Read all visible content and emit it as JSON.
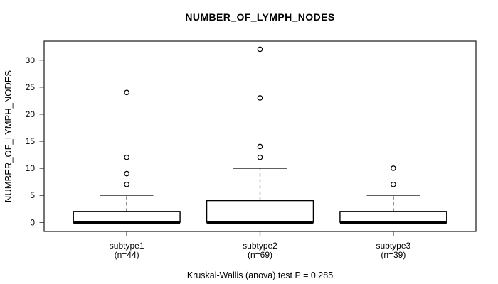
{
  "chart_data": {
    "type": "boxplot",
    "title": "NUMBER_OF_LYMPH_NODES",
    "ylabel": "NUMBER_OF_LYMPH_NODES",
    "yticks": [
      0,
      5,
      10,
      15,
      20,
      25,
      30
    ],
    "ylim": [
      -1.7,
      33.5
    ],
    "grid": false,
    "box_color": "#000000",
    "box_fill": "#ffffff",
    "background": "#ffffff",
    "groups": [
      {
        "label": "subtype1",
        "n": 44,
        "n_label": "(n=44)",
        "q1": 0,
        "median": 0,
        "q3": 2,
        "whisker_low": 0,
        "whisker_high": 5,
        "outliers": [
          7,
          9,
          12,
          24
        ]
      },
      {
        "label": "subtype2",
        "n": 69,
        "n_label": "(n=69)",
        "q1": 0,
        "median": 0,
        "q3": 4,
        "whisker_low": 0,
        "whisker_high": 10,
        "outliers": [
          12,
          14,
          23,
          32
        ]
      },
      {
        "label": "subtype3",
        "n": 39,
        "n_label": "(n=39)",
        "q1": 0,
        "median": 0,
        "q3": 2,
        "whisker_low": 0,
        "whisker_high": 5,
        "outliers": [
          7,
          10
        ]
      }
    ],
    "footer": "Kruskal-Wallis (anova) test P = 0.285"
  }
}
